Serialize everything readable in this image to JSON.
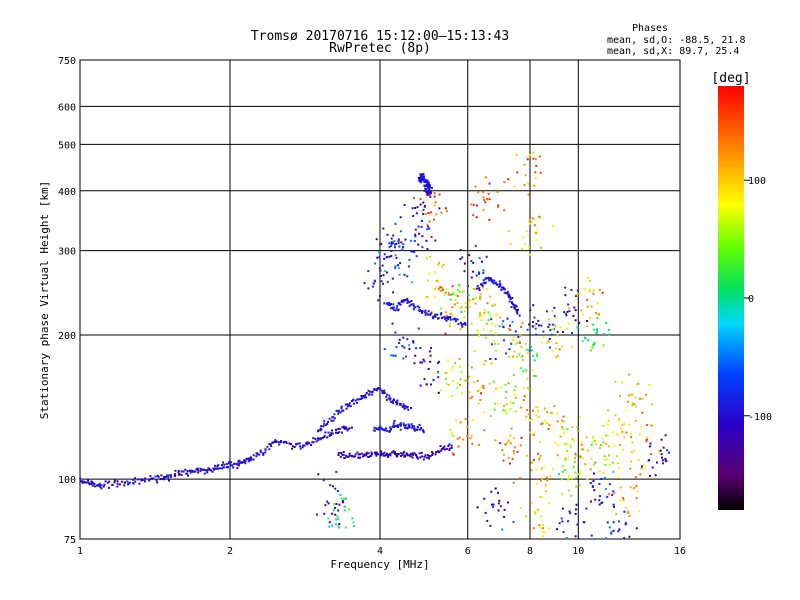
{
  "chart_data": {
    "type": "scatter",
    "title": "Tromsø 20170716 15:12:00–15:13:43",
    "subtitle": "RwPretec (8p)",
    "xlabel": "Frequency [MHz]",
    "ylabel": "Stationary phase Virtual Height [km]",
    "x_scale": "log",
    "y_scale": "log",
    "xlim": [
      1,
      16
    ],
    "ylim": [
      75,
      750
    ],
    "x_ticks": [
      1,
      2,
      4,
      6,
      8,
      10,
      16
    ],
    "y_ticks": [
      75,
      100,
      200,
      300,
      400,
      500,
      600,
      750
    ],
    "grid": true,
    "phase_stats": {
      "heading": "Phases",
      "line_o": "mean, sd,O: -88.5, 21.8",
      "line_x": "mean, sd,X: 89.7, 25.4"
    },
    "colorbar": {
      "label": "[deg]",
      "ticks": [
        100,
        0,
        -100
      ],
      "range": [
        -180,
        180
      ],
      "colormap": "rainbow (black→purple→blue→cyan→green→yellow→orange→red)"
    },
    "series": [
      {
        "traces": [
          {
            "f": [
              1.0,
              1.05,
              1.1,
              1.2,
              1.3,
              1.4,
              1.5,
              1.6,
              1.7,
              1.8,
              1.9,
              2.0,
              2.1,
              2.2,
              2.35,
              2.5,
              2.7,
              2.9,
              3.1,
              3.3,
              3.5
            ],
            "h": [
              99,
              98,
              97,
              98,
              99,
              100,
              101,
              103,
              104,
              104,
              106,
              107,
              108,
              110,
              115,
              120,
              117,
              118,
              123,
              126,
              128
            ],
            "phase": -105
          },
          {
            "f": [
              3.3,
              3.5,
              3.7,
              3.9,
              4.1,
              4.3,
              4.5,
              4.7,
              5.0,
              5.3,
              5.6
            ],
            "h": [
              112,
              112,
              112,
              113,
              113,
              113,
              112,
              112,
              111,
              115,
              118
            ],
            "phase": -115
          },
          {
            "f": [
              3.0,
              3.2,
              3.4,
              3.6,
              3.8,
              4.0,
              4.2,
              4.4,
              4.6
            ],
            "h": [
              126,
              134,
              142,
              147,
              152,
              155,
              146,
              143,
              139
            ],
            "phase": -100
          },
          {
            "f": [
              3.9,
              4.1,
              4.3,
              4.5,
              4.7,
              4.9
            ],
            "h": [
              128,
              126,
              130,
              129,
              128,
              127
            ],
            "phase": -95
          },
          {
            "f": [
              4.8,
              4.85,
              4.9,
              4.95,
              5.0,
              5.05,
              5.0,
              4.95
            ],
            "h": [
              420,
              430,
              425,
              410,
              415,
              400,
              390,
              405
            ],
            "phase": -100
          },
          {
            "f": [
              4.1,
              4.3,
              4.5,
              4.7,
              5.0,
              5.3,
              5.6,
              6.0
            ],
            "h": [
              235,
              225,
              240,
              228,
              222,
              218,
              215,
              210
            ],
            "phase": -95
          },
          {
            "f": [
              6.3,
              6.6,
              6.9,
              7.2,
              7.4,
              7.6
            ],
            "h": [
              250,
              262,
              255,
              245,
              230,
              220
            ],
            "phase": -100
          }
        ],
        "blobs": [
          {
            "f": 4.0,
            "h": 260,
            "phase": -90
          },
          {
            "f": 4.2,
            "h": 300,
            "phase": -110
          },
          {
            "f": 4.4,
            "h": 280,
            "phase": -60
          },
          {
            "f": 4.6,
            "h": 320,
            "phase": -90
          },
          {
            "f": 4.8,
            "h": 350,
            "phase": -100
          },
          {
            "f": 5.1,
            "h": 360,
            "phase": 150
          },
          {
            "f": 5.3,
            "h": 260,
            "phase": 80
          },
          {
            "f": 5.5,
            "h": 230,
            "phase": 120
          },
          {
            "f": 5.8,
            "h": 240,
            "phase": 60
          },
          {
            "f": 6.1,
            "h": 280,
            "phase": -90
          },
          {
            "f": 6.4,
            "h": 230,
            "phase": 100
          },
          {
            "f": 6.8,
            "h": 210,
            "phase": 70
          },
          {
            "f": 7.2,
            "h": 200,
            "phase": -80
          },
          {
            "f": 7.6,
            "h": 190,
            "phase": 110
          },
          {
            "f": 8.0,
            "h": 180,
            "phase": 40
          },
          {
            "f": 8.5,
            "h": 210,
            "phase": -100
          },
          {
            "f": 9.0,
            "h": 200,
            "phase": 90
          },
          {
            "f": 9.6,
            "h": 230,
            "phase": -110
          },
          {
            "f": 10.5,
            "h": 240,
            "phase": 110
          },
          {
            "f": 4.5,
            "h": 190,
            "phase": -90
          },
          {
            "f": 5.0,
            "h": 175,
            "phase": -120
          },
          {
            "f": 5.6,
            "h": 165,
            "phase": 80
          },
          {
            "f": 6.2,
            "h": 160,
            "phase": 110
          },
          {
            "f": 7.0,
            "h": 150,
            "phase": 60
          },
          {
            "f": 7.8,
            "h": 140,
            "phase": 100
          },
          {
            "f": 8.6,
            "h": 130,
            "phase": 120
          },
          {
            "f": 9.4,
            "h": 120,
            "phase": 80
          },
          {
            "f": 10.3,
            "h": 115,
            "phase": 100
          },
          {
            "f": 11.2,
            "h": 110,
            "phase": 70
          },
          {
            "f": 12.0,
            "h": 130,
            "phase": 90
          },
          {
            "f": 13.5,
            "h": 115,
            "phase": 110
          },
          {
            "f": 14.5,
            "h": 110,
            "phase": -110
          },
          {
            "f": 6.0,
            "h": 125,
            "phase": 120
          },
          {
            "f": 7.2,
            "h": 115,
            "phase": 140
          },
          {
            "f": 8.4,
            "h": 105,
            "phase": 110
          },
          {
            "f": 9.6,
            "h": 100,
            "phase": 60
          },
          {
            "f": 11.0,
            "h": 95,
            "phase": -90
          },
          {
            "f": 12.5,
            "h": 90,
            "phase": 120
          },
          {
            "f": 8.0,
            "h": 330,
            "phase": 100
          },
          {
            "f": 7.9,
            "h": 440,
            "phase": 130
          },
          {
            "f": 6.5,
            "h": 390,
            "phase": 150
          },
          {
            "f": 10.8,
            "h": 200,
            "phase": 30
          },
          {
            "f": 13.0,
            "h": 150,
            "phase": 100
          },
          {
            "f": 6.8,
            "h": 85,
            "phase": -110
          },
          {
            "f": 8.2,
            "h": 82,
            "phase": 100
          },
          {
            "f": 9.8,
            "h": 80,
            "phase": -100
          },
          {
            "f": 12.2,
            "h": 80,
            "phase": -90
          },
          {
            "f": 3.2,
            "h": 92,
            "phase": -110
          },
          {
            "f": 3.35,
            "h": 85,
            "phase": 10
          }
        ]
      }
    ]
  }
}
